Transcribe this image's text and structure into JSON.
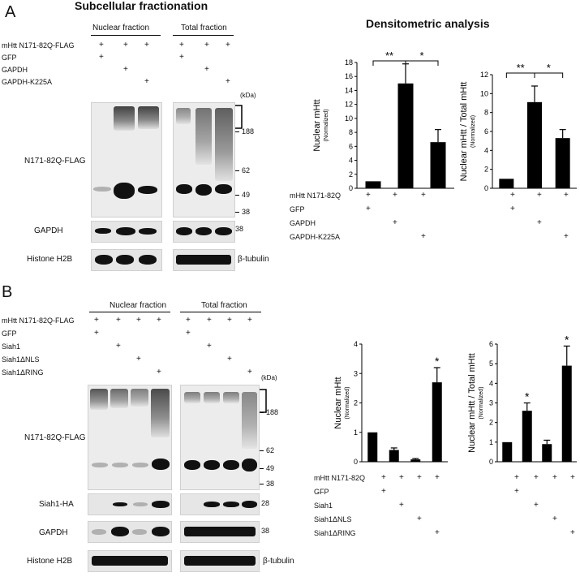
{
  "panelA": {
    "letter": "A",
    "title": "Subcellular fractionation",
    "densitometric_title": "Densitometric analysis",
    "nuclear_fraction": "Nuclear fraction",
    "total_fraction": "Total fraction",
    "rows": [
      {
        "label": "mHtt N171-82Q-FLAG",
        "marks": [
          "+",
          "+",
          "+",
          "+",
          "+",
          "+"
        ]
      },
      {
        "label": "GFP",
        "marks": [
          "+",
          "",
          "",
          "+",
          "",
          ""
        ]
      },
      {
        "label": "GAPDH",
        "marks": [
          "",
          "+",
          "",
          "",
          "+",
          ""
        ]
      },
      {
        "label": "GAPDH-K225A",
        "marks": [
          "",
          "",
          "+",
          "",
          "",
          "+"
        ]
      }
    ],
    "kda": "(kDa)",
    "markers": [
      "188",
      "62",
      "49",
      "38"
    ],
    "gapdh_marker": "38",
    "blot_labels": {
      "main": "N171-82Q-FLAG",
      "gapdh": "GAPDH",
      "histone": "Histone H2B",
      "tubulin": "β-tubulin"
    },
    "chart_rows": [
      {
        "label": "mHtt N171-82Q",
        "marks": [
          "+",
          "+",
          "+"
        ]
      },
      {
        "label": "GFP",
        "marks": [
          "+",
          "",
          ""
        ]
      },
      {
        "label": "GAPDH",
        "marks": [
          "",
          "+",
          ""
        ]
      },
      {
        "label": "GAPDH-K225A",
        "marks": [
          "",
          "",
          "+"
        ]
      }
    ]
  },
  "panelB": {
    "letter": "B",
    "nuclear_fraction": "Nuclear fraction",
    "total_fraction": "Total fraction",
    "rows": [
      {
        "label": "mHtt N171-82Q-FLAG",
        "marks": [
          "+",
          "+",
          "+",
          "+",
          "+",
          "+",
          "+",
          "+"
        ]
      },
      {
        "label": "GFP",
        "marks": [
          "+",
          "",
          "",
          "",
          "+",
          "",
          "",
          ""
        ]
      },
      {
        "label": "Siah1",
        "marks": [
          "",
          "+",
          "",
          "",
          "",
          "+",
          "",
          ""
        ]
      },
      {
        "label": "Siah1ΔNLS",
        "marks": [
          "",
          "",
          "+",
          "",
          "",
          "",
          "+",
          ""
        ]
      },
      {
        "label": "Siah1ΔRING",
        "marks": [
          "",
          "",
          "",
          "+",
          "",
          "",
          "",
          "+"
        ]
      }
    ],
    "kda": "(kDa)",
    "markers": [
      "188",
      "62",
      "49",
      "38"
    ],
    "siah_marker": "28",
    "gapdh_marker": "38",
    "blot_labels": {
      "main": "N171-82Q-FLAG",
      "siah": "Siah1-HA",
      "gapdh": "GAPDH",
      "histone": "Histone H2B",
      "tubulin": "β-tubulin"
    },
    "chart_rows": [
      {
        "label": "mHtt N171-82Q",
        "marks": [
          "+",
          "+",
          "+",
          "+"
        ]
      },
      {
        "label": "GFP",
        "marks": [
          "+",
          "",
          "",
          ""
        ]
      },
      {
        "label": "Siah1",
        "marks": [
          "",
          "+",
          "",
          ""
        ]
      },
      {
        "label": "Siah1ΔNLS",
        "marks": [
          "",
          "",
          "+",
          ""
        ]
      },
      {
        "label": "Siah1ΔRING",
        "marks": [
          "",
          "",
          "",
          "+"
        ]
      }
    ]
  },
  "chart_data": [
    {
      "type": "bar",
      "id": "A1",
      "ylabel": "Nuclear mHtt",
      "ylabel_sub": "(Normalized)",
      "ylim": [
        0,
        18
      ],
      "yticks": [
        0,
        2,
        4,
        6,
        8,
        10,
        12,
        14,
        16,
        18
      ],
      "values": [
        1.0,
        15.0,
        6.6
      ],
      "errors": [
        0,
        2.8,
        1.8
      ],
      "significance": [
        {
          "from": 0,
          "to": 1,
          "label": "**"
        },
        {
          "from": 1,
          "to": 2,
          "label": "*"
        }
      ],
      "stars": [
        "",
        "",
        ""
      ]
    },
    {
      "type": "bar",
      "id": "A2",
      "ylabel": "Nuclear mHtt / Total mHtt",
      "ylabel_sub": "(Normalized)",
      "ylim": [
        0,
        12
      ],
      "yticks": [
        0,
        2,
        4,
        6,
        8,
        10,
        12
      ],
      "values": [
        1.0,
        9.1,
        5.3
      ],
      "errors": [
        0,
        1.7,
        0.9
      ],
      "significance": [
        {
          "from": 0,
          "to": 1,
          "label": "**"
        },
        {
          "from": 1,
          "to": 2,
          "label": "*"
        }
      ],
      "stars": [
        "",
        "",
        ""
      ]
    },
    {
      "type": "bar",
      "id": "B1",
      "ylabel": "Nuclear mHtt",
      "ylabel_sub": "(Normalized)",
      "ylim": [
        0,
        4
      ],
      "yticks": [
        0,
        1,
        2,
        3,
        4
      ],
      "values": [
        1.0,
        0.4,
        0.08,
        2.7
      ],
      "errors": [
        0,
        0.07,
        0.03,
        0.5
      ],
      "significance": [],
      "stars": [
        "",
        "",
        "",
        "*"
      ]
    },
    {
      "type": "bar",
      "id": "B2",
      "ylabel": "Nuclear mHtt / Total mHtt",
      "ylabel_sub": "(Normalized)",
      "ylim": [
        0,
        6
      ],
      "yticks": [
        0,
        1,
        2,
        3,
        4,
        5,
        6
      ],
      "values": [
        1.0,
        2.6,
        0.9,
        4.9
      ],
      "errors": [
        0,
        0.4,
        0.2,
        1.0
      ],
      "significance": [],
      "stars": [
        "",
        "*",
        "",
        "*"
      ]
    }
  ]
}
